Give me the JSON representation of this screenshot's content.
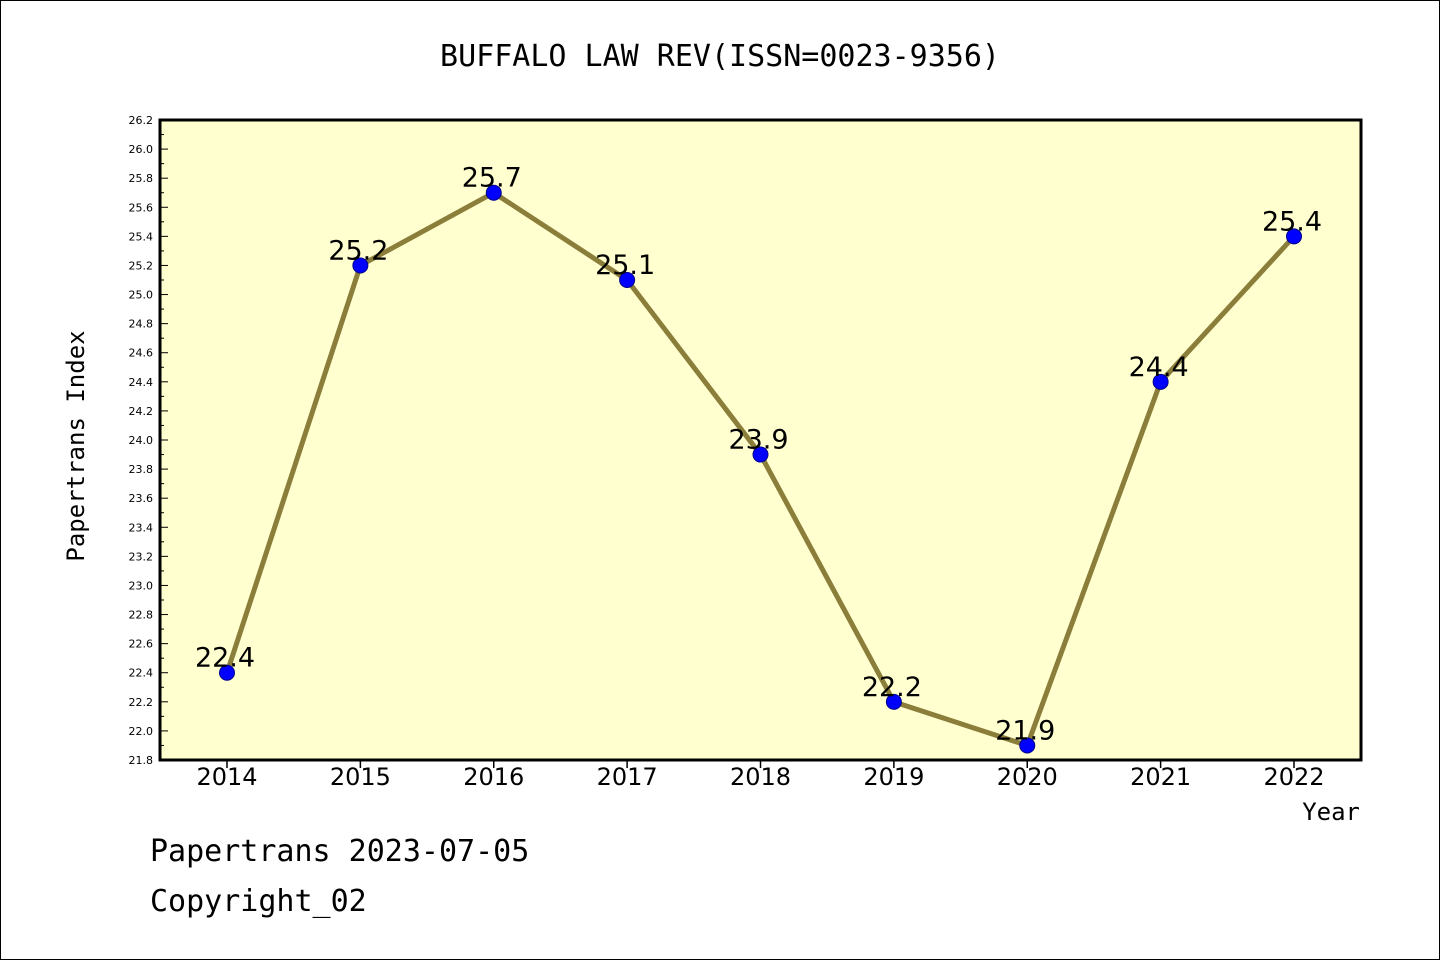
{
  "chart_data": {
    "type": "line",
    "title": "BUFFALO LAW REV(ISSN=0023-9356)",
    "xlabel": "Year",
    "ylabel": "Papertrans Index",
    "categories": [
      "2014",
      "2015",
      "2016",
      "2017",
      "2018",
      "2019",
      "2020",
      "2021",
      "2022"
    ],
    "values": [
      22.4,
      25.2,
      25.7,
      25.1,
      23.9,
      22.2,
      21.9,
      24.4,
      25.4
    ],
    "data_labels": [
      "22.4",
      "25.2",
      "25.7",
      "25.1",
      "23.9",
      "22.2",
      "21.9",
      "24.4",
      "25.4"
    ],
    "ylim": [
      21.8,
      26.2
    ],
    "yticks": [
      "21.8",
      "22.0",
      "22.2",
      "22.4",
      "22.6",
      "22.8",
      "23.0",
      "23.2",
      "23.4",
      "23.6",
      "23.8",
      "24.0",
      "24.2",
      "24.4",
      "24.6",
      "24.8",
      "25.0",
      "25.2",
      "25.4",
      "25.6",
      "25.8",
      "26.0",
      "26.2"
    ],
    "grid": false,
    "legend": "none",
    "colors": {
      "plot_background": "#ffffd0",
      "line": "#8b7d3a",
      "marker": "#0000ff",
      "marker_edge": "#00008b",
      "axes": "#000000"
    }
  },
  "footer": {
    "line1": "Papertrans 2023-07-05",
    "line2": "Copyright_02"
  }
}
